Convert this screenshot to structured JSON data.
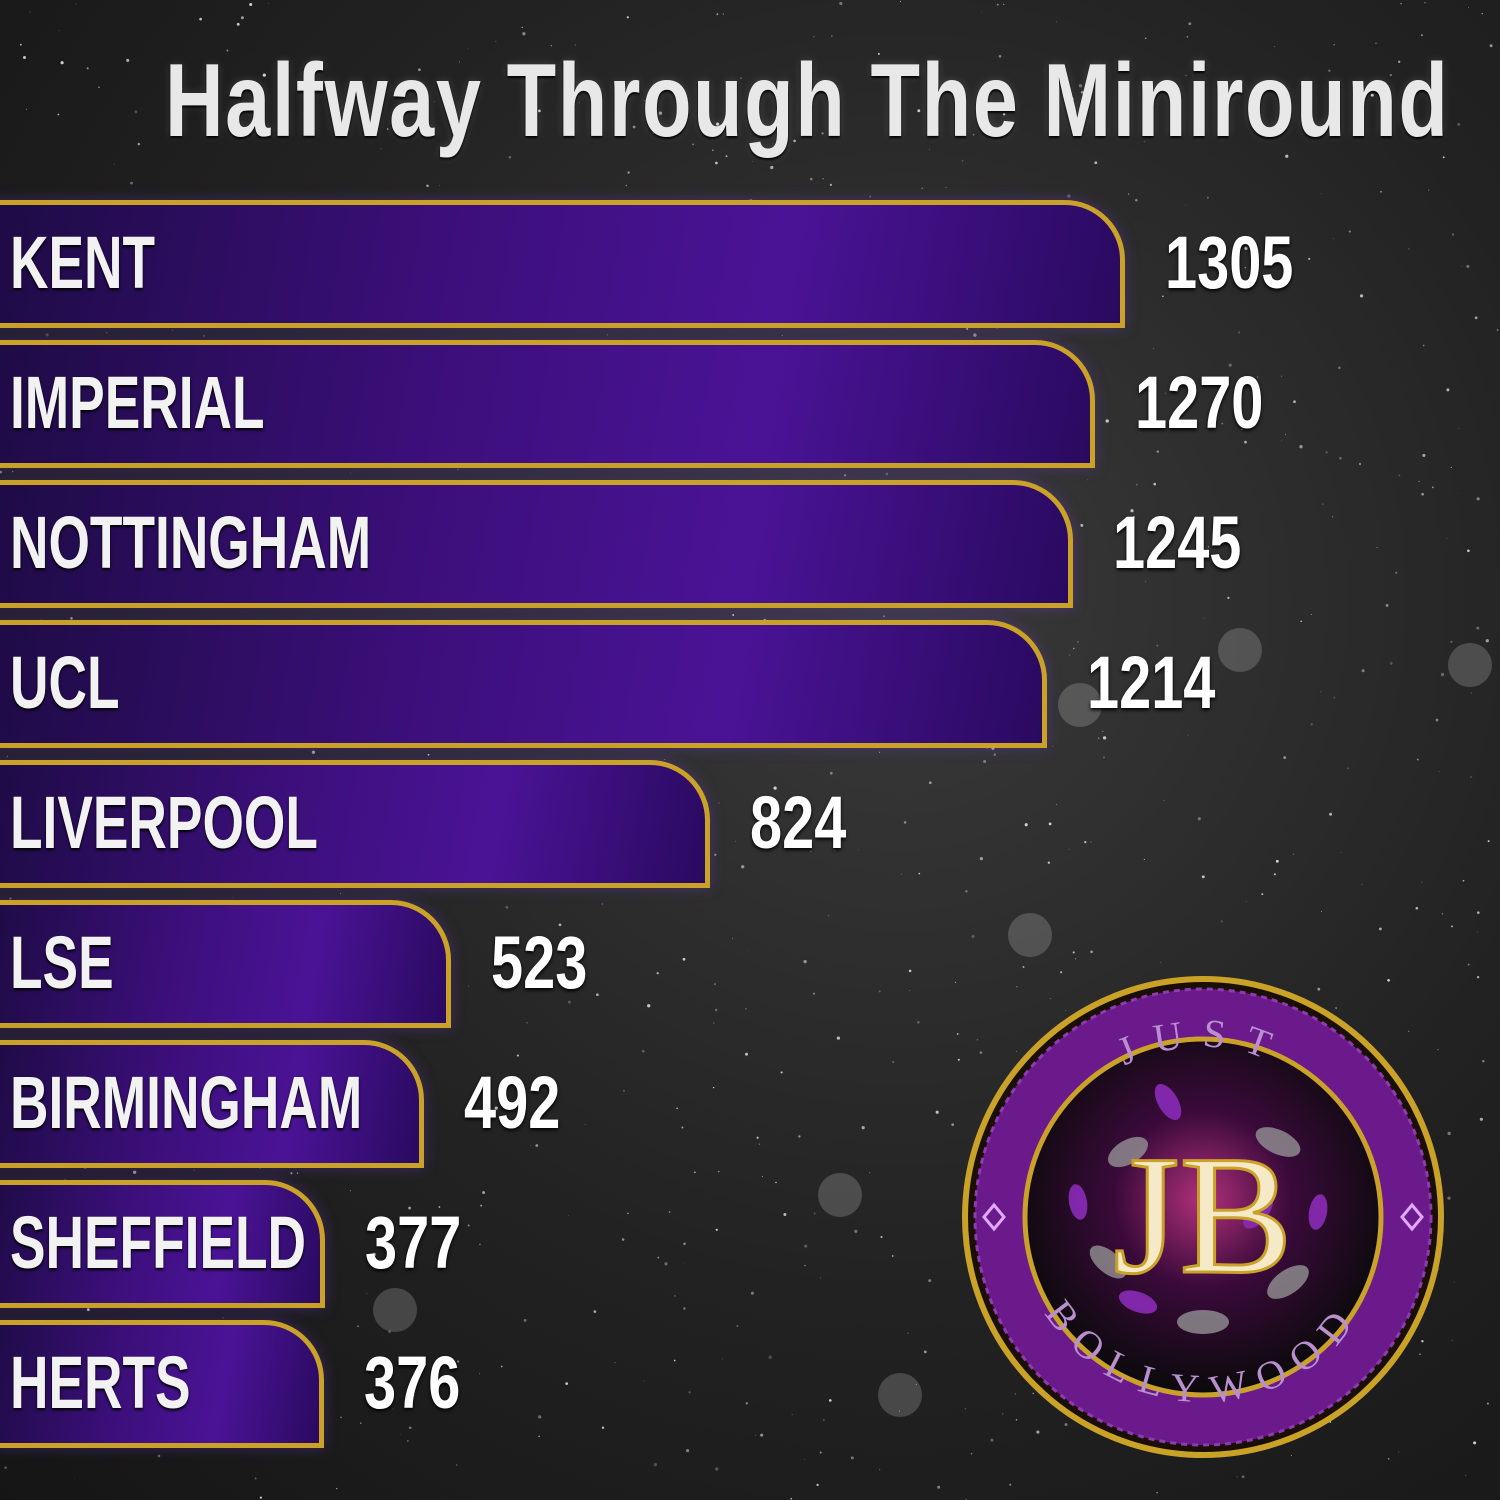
{
  "chart_data": {
    "type": "bar",
    "orientation": "horizontal",
    "title": "Halfway Through The Miniround",
    "categories": [
      "KENT",
      "IMPERIAL",
      "NOTTINGHAM",
      "UCL",
      "LIVERPOOL",
      "LSE",
      "BIRMINGHAM",
      "SHEFFIELD",
      "HERTS"
    ],
    "values": [
      1305,
      1270,
      1245,
      1214,
      824,
      523,
      492,
      377,
      376
    ],
    "labels": [
      "1305",
      "1270",
      "1245",
      "1214",
      "824",
      "523",
      "492",
      "377",
      "376"
    ],
    "xlabel": "",
    "ylabel": "",
    "grid": false,
    "legend": "none"
  },
  "colors": {
    "bar_fill": "#3b0f7a",
    "bar_border": "#c9a227",
    "text": "#ffffff",
    "background": "#222222"
  },
  "logo": {
    "top_text": "JUST",
    "monogram": "JB",
    "bottom_text": "BOLLYWOOD"
  }
}
